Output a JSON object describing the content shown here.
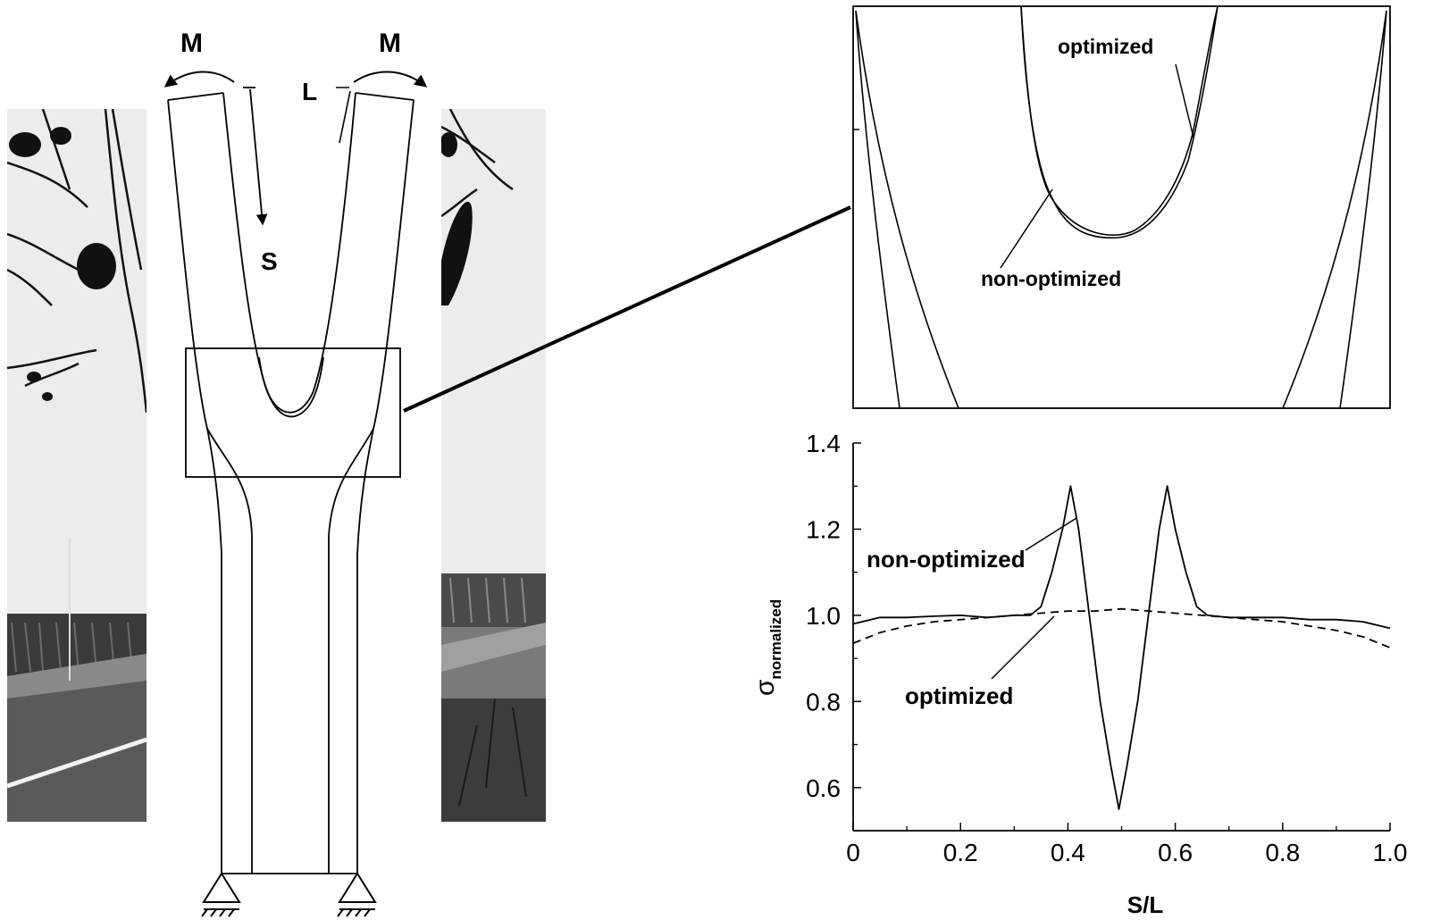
{
  "diagram": {
    "moment_label_left": "M",
    "moment_label_right": "M",
    "length_label": "L",
    "arc_coordinate_label": "S"
  },
  "zoom_inset": {
    "label_optimized": "optimized",
    "label_non_optimized": "non-optimized"
  },
  "chart_data": {
    "type": "line",
    "xlabel": "S/L",
    "ylabel": "σ",
    "ylabel_subscript": "normalized",
    "xlim": [
      0,
      1.0
    ],
    "ylim": [
      0.5,
      1.4
    ],
    "xticks": [
      "0",
      "0.2",
      "0.4",
      "0.6",
      "0.8",
      "1.0"
    ],
    "yticks": [
      "0.6",
      "0.8",
      "1.0",
      "1.2",
      "1.4"
    ],
    "annotations": [
      "non-optimized",
      "optimized"
    ],
    "grid": false,
    "series": [
      {
        "name": "non-optimized",
        "style": "solid",
        "x": [
          0,
          0.05,
          0.1,
          0.15,
          0.2,
          0.25,
          0.3,
          0.33,
          0.35,
          0.37,
          0.39,
          0.405,
          0.42,
          0.44,
          0.46,
          0.48,
          0.495,
          0.51,
          0.53,
          0.55,
          0.57,
          0.585,
          0.6,
          0.62,
          0.64,
          0.66,
          0.7,
          0.75,
          0.8,
          0.85,
          0.9,
          0.95,
          1.0
        ],
        "y": [
          0.98,
          0.995,
          0.995,
          0.998,
          1.0,
          0.995,
          1.0,
          1.0,
          1.02,
          1.1,
          1.2,
          1.3,
          1.2,
          1.0,
          0.8,
          0.65,
          0.55,
          0.65,
          0.8,
          1.0,
          1.2,
          1.3,
          1.2,
          1.1,
          1.02,
          1.0,
          0.995,
          0.995,
          0.995,
          0.99,
          0.99,
          0.985,
          0.97
        ]
      },
      {
        "name": "optimized",
        "style": "dashed",
        "x": [
          0,
          0.05,
          0.1,
          0.15,
          0.2,
          0.25,
          0.3,
          0.35,
          0.4,
          0.45,
          0.5,
          0.55,
          0.6,
          0.65,
          0.7,
          0.75,
          0.8,
          0.85,
          0.9,
          0.95,
          1.0
        ],
        "y": [
          0.935,
          0.96,
          0.975,
          0.985,
          0.99,
          0.995,
          1.0,
          1.005,
          1.01,
          1.01,
          1.015,
          1.01,
          1.005,
          1.0,
          0.995,
          0.99,
          0.985,
          0.975,
          0.965,
          0.95,
          0.925
        ]
      }
    ]
  },
  "colors": {
    "ink": "#000000",
    "background": "#ffffff",
    "photo_sky": "#e9e9e9"
  }
}
